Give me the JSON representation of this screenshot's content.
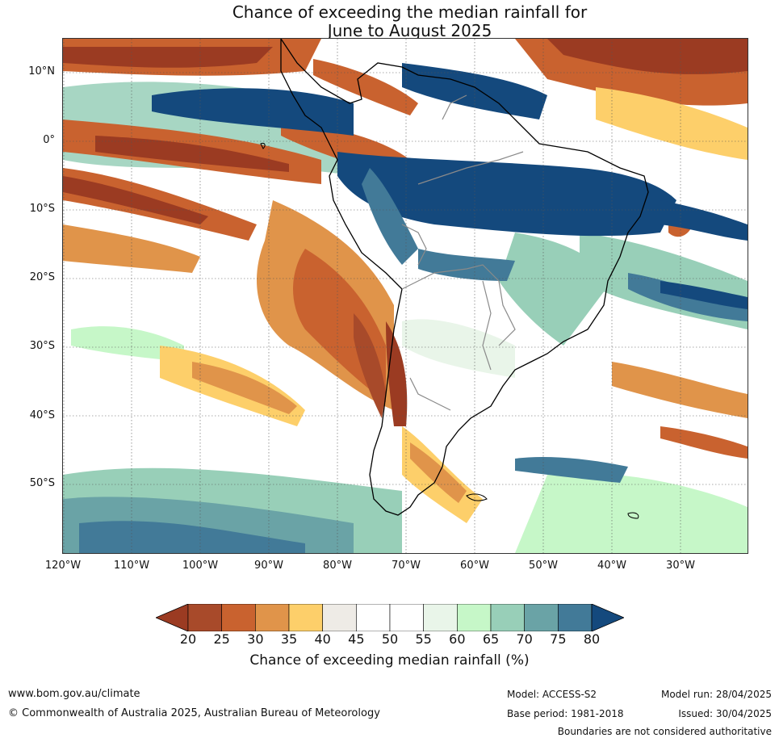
{
  "title": {
    "line1": "Chance of exceeding the median rainfall for",
    "line2": "June to August 2025"
  },
  "map": {
    "region": "South America and surrounding oceans",
    "lat_labels": [
      "10°N",
      "0°",
      "10°S",
      "20°S",
      "30°S",
      "40°S",
      "50°S"
    ],
    "lon_labels": [
      "120°W",
      "110°W",
      "100°W",
      "90°W",
      "80°W",
      "70°W",
      "60°W",
      "50°W",
      "40°W",
      "30°W"
    ]
  },
  "colorbar": {
    "ticks": [
      "20",
      "25",
      "30",
      "35",
      "40",
      "45",
      "50",
      "55",
      "60",
      "65",
      "70",
      "75",
      "80"
    ],
    "colors": [
      "#a84a2a",
      "#c9622f",
      "#e0944a",
      "#fdcf6a",
      "#eeebe6",
      "#ffffff",
      "#ffffff",
      "#e9f5e9",
      "#c6f7c8",
      "#98cfb8",
      "#6aa3a6",
      "#427a98"
    ],
    "under_color": "#9b3b22",
    "over_color": "#14497d",
    "label": "Chance of exceeding median rainfall (%)"
  },
  "footer": {
    "url": "www.bom.gov.au/climate",
    "copyright": "© Commonwealth of Australia 2025, Australian Bureau of Meteorology",
    "model": "Model: ACCESS-S2",
    "base_period": "Base period: 1981-2018",
    "model_run": "Model run: 28/04/2025",
    "issued": "Issued: 30/04/2025",
    "disclaimer": "Boundaries are not considered authoritative"
  }
}
